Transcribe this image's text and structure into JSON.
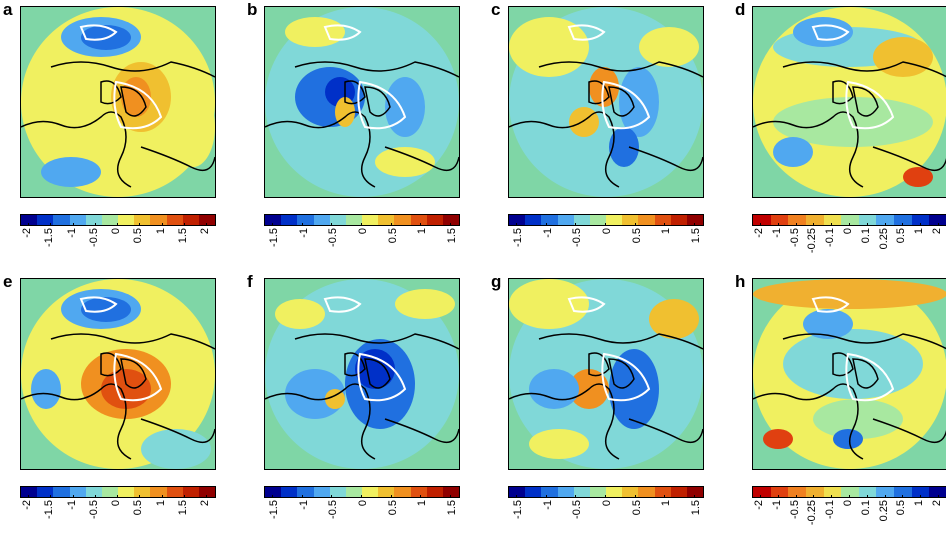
{
  "figure": {
    "panels": [
      {
        "letter": "a",
        "map": "anomaly-map-a",
        "scale": "div22"
      },
      {
        "letter": "b",
        "map": "anomaly-map-b",
        "scale": "div15"
      },
      {
        "letter": "c",
        "map": "anomaly-map-c",
        "scale": "div15"
      },
      {
        "letter": "d",
        "map": "anomaly-map-d",
        "scale": "rev2"
      },
      {
        "letter": "e",
        "map": "anomaly-map-e",
        "scale": "div22"
      },
      {
        "letter": "f",
        "map": "anomaly-map-f",
        "scale": "div15"
      },
      {
        "letter": "g",
        "map": "anomaly-map-g",
        "scale": "div15"
      },
      {
        "letter": "h",
        "map": "anomaly-map-h",
        "scale": "rev2"
      }
    ],
    "colorbars": {
      "div22": {
        "ticks": [
          "-2",
          "-1.5",
          "-1",
          "-0.5",
          "0",
          "0.5",
          "1",
          "1.5",
          "2"
        ],
        "colors": [
          "#00008f",
          "#0030c8",
          "#2070e0",
          "#50a8f0",
          "#80d8d8",
          "#a8e8a0",
          "#f0f060",
          "#f0c030",
          "#f09020",
          "#e05010",
          "#c02000",
          "#900000"
        ]
      },
      "div15": {
        "ticks": [
          "-1.5",
          "-1",
          "-0.5",
          "0",
          "0.5",
          "1",
          "1.5"
        ],
        "colors": [
          "#00008f",
          "#0030c8",
          "#2070e0",
          "#50a8f0",
          "#80d8d8",
          "#a8e8a0",
          "#f0f060",
          "#f0c030",
          "#f09020",
          "#e05010",
          "#c02000",
          "#900000"
        ]
      },
      "rev2": {
        "ticks": [
          "-2",
          "-1",
          "-0.5",
          "-0.25",
          "-0.1",
          "0",
          "0.1",
          "0.25",
          "0.5",
          "1",
          "2"
        ],
        "colors": [
          "#c00000",
          "#e04010",
          "#f08020",
          "#f0b030",
          "#f0e050",
          "#a8e8a0",
          "#80d8d8",
          "#50a8f0",
          "#2070e0",
          "#0030c8",
          "#00008f"
        ]
      }
    },
    "colors": {
      "background": "#7fd6a6",
      "coast": "#000000",
      "contour": "#ffffff"
    }
  }
}
